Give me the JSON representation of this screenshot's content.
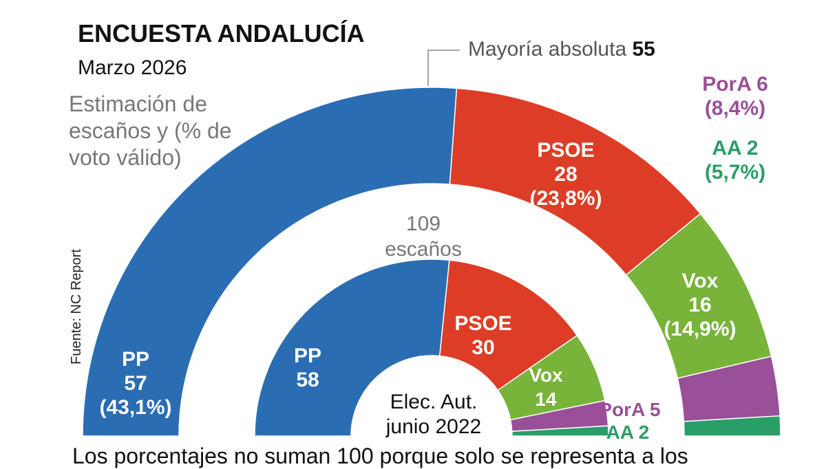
{
  "chart_data": {
    "type": "pie",
    "subtype": "hemicycle",
    "title": "ENCUESTA ANDALUCÍA",
    "subtitle": "Marzo 2026",
    "description": "Estimación de escaños y (% de voto válido)",
    "source": "Fuente: NC Report",
    "majority_label": "Mayoría absoluta",
    "majority_value": 55,
    "total_label": "109",
    "total_unit": "escaños",
    "inner_label_line1": "Elec. Aut.",
    "inner_label_line2": "junio 2022",
    "note": "Los porcentajes no suman 100 porque solo se representa a los",
    "series": [
      {
        "name": "Marzo 2026",
        "parties": [
          {
            "party": "PP",
            "seats": 57,
            "pct": "(43,1%)",
            "color": "#2a6db3"
          },
          {
            "party": "PSOE",
            "seats": 28,
            "pct": "(23,8%)",
            "color": "#dd3d26"
          },
          {
            "party": "Vox",
            "seats": 16,
            "pct": "(14,9%)",
            "color": "#78b43a"
          },
          {
            "party": "PorA",
            "seats": 6,
            "pct": "(8,4%)",
            "color": "#9a4f99"
          },
          {
            "party": "AA",
            "seats": 2,
            "pct": "(5,7%)",
            "color": "#2a9e68"
          }
        ]
      },
      {
        "name": "Elec. Aut. junio 2022",
        "parties": [
          {
            "party": "PP",
            "seats": 58,
            "color": "#2a6db3"
          },
          {
            "party": "PSOE",
            "seats": 30,
            "color": "#dd3d26"
          },
          {
            "party": "Vox",
            "seats": 14,
            "color": "#78b43a"
          },
          {
            "party": "PorA",
            "seats": 5,
            "color": "#9a4f99"
          },
          {
            "party": "AA",
            "seats": 2,
            "color": "#2a9e68"
          }
        ]
      }
    ]
  }
}
